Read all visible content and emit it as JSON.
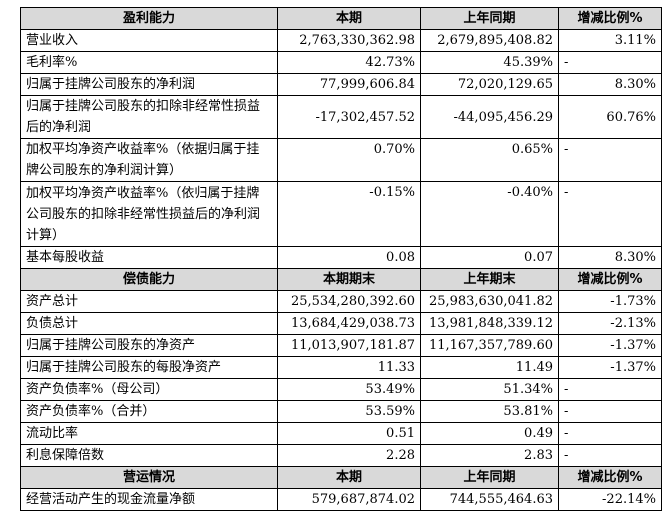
{
  "sections": [
    {
      "headers": [
        "盈利能力",
        "本期",
        "上年同期",
        "增减比例%"
      ],
      "rows": [
        {
          "label": "营业收入",
          "current": "2,763,330,362.98",
          "previous": "2,679,895,408.82",
          "change": "3.11%"
        },
        {
          "label": "毛利率%",
          "current": "42.73%",
          "previous": "45.39%",
          "change": "-"
        },
        {
          "label": "归属于挂牌公司股东的净利润",
          "current": "77,999,606.84",
          "previous": "72,020,129.65",
          "change": "8.30%"
        },
        {
          "label": "归属于挂牌公司股东的扣除非经常性损益后的净利润",
          "current": "-17,302,457.52",
          "previous": "-44,095,456.29",
          "change": "60.76%"
        },
        {
          "label": "加权平均净资产收益率%（依据归属于挂牌公司股东的净利润计算）",
          "current": "0.70%",
          "previous": "0.65%",
          "change": "-"
        },
        {
          "label": "加权平均净资产收益率%（依归属于挂牌公司股东的扣除非经常性损益后的净利润计算）",
          "current": "-0.15%",
          "previous": "-0.40%",
          "change": "-"
        },
        {
          "label": "基本每股收益",
          "current": "0.08",
          "previous": "0.07",
          "change": "8.30%"
        }
      ]
    },
    {
      "headers": [
        "偿债能力",
        "本期期末",
        "上年期末",
        "增减比例%"
      ],
      "rows": [
        {
          "label": "资产总计",
          "current": "25,534,280,392.60",
          "previous": "25,983,630,041.82",
          "change": "-1.73%"
        },
        {
          "label": "负债总计",
          "current": "13,684,429,038.73",
          "previous": "13,981,848,339.12",
          "change": "-2.13%"
        },
        {
          "label": "归属于挂牌公司股东的净资产",
          "current": "11,013,907,181.87",
          "previous": "11,167,357,789.60",
          "change": "-1.37%"
        },
        {
          "label": "归属于挂牌公司股东的每股净资产",
          "current": "11.33",
          "previous": "11.49",
          "change": "-1.37%"
        },
        {
          "label": "资产负债率%（母公司）",
          "current": "53.49%",
          "previous": "51.34%",
          "change": "-"
        },
        {
          "label": "资产负债率%（合并）",
          "current": "53.59%",
          "previous": "53.81%",
          "change": "-"
        },
        {
          "label": "流动比率",
          "current": "0.51",
          "previous": "0.49",
          "change": "-"
        },
        {
          "label": "利息保障倍数",
          "current": "2.28",
          "previous": "2.83",
          "change": "-"
        }
      ]
    },
    {
      "headers": [
        "营运情况",
        "本期",
        "上年同期",
        "增减比例%"
      ],
      "rows": [
        {
          "label": "经营活动产生的现金流量净额",
          "current": "579,687,874.02",
          "previous": "744,555,464.63",
          "change": "-22.14%"
        }
      ]
    }
  ]
}
